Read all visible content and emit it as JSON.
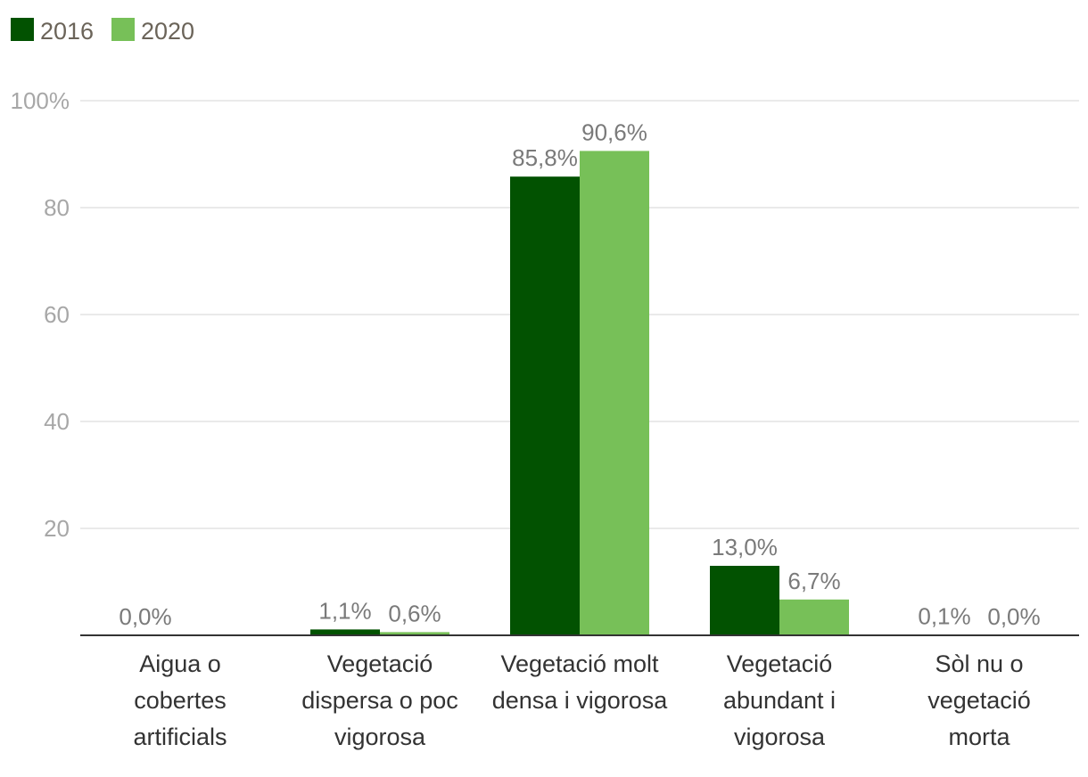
{
  "chart_data": {
    "type": "bar",
    "categories": [
      [
        "Aigua o",
        "cobertes",
        "artificials"
      ],
      [
        "Vegetació",
        "dispersa o poc",
        "vigorosa"
      ],
      [
        "Vegetació molt",
        "densa i vigorosa"
      ],
      [
        "Vegetació",
        "abundant i",
        "vigorosa"
      ],
      [
        "Sòl nu o",
        "vegetació",
        "morta"
      ]
    ],
    "series": [
      {
        "name": "2016",
        "color": "#025201",
        "values": [
          0.0,
          1.1,
          85.8,
          13.0,
          0.1
        ],
        "labels": [
          "0,0%",
          "1,1%",
          "85,8%",
          "13,0%",
          "0,1%"
        ]
      },
      {
        "name": "2020",
        "color": "#77c058",
        "values": [
          0.0,
          0.6,
          90.6,
          6.7,
          0.0
        ],
        "labels": [
          "",
          "0,6%",
          "90,6%",
          "6,7%",
          "0,0%"
        ]
      }
    ],
    "yticks": [
      {
        "value": 20,
        "label": "20"
      },
      {
        "value": 40,
        "label": "40"
      },
      {
        "value": 60,
        "label": "60"
      },
      {
        "value": 80,
        "label": "80"
      },
      {
        "value": 100,
        "label": "100%"
      }
    ],
    "ylim": [
      0,
      100
    ],
    "grid": true,
    "legend_position": "top-left"
  }
}
